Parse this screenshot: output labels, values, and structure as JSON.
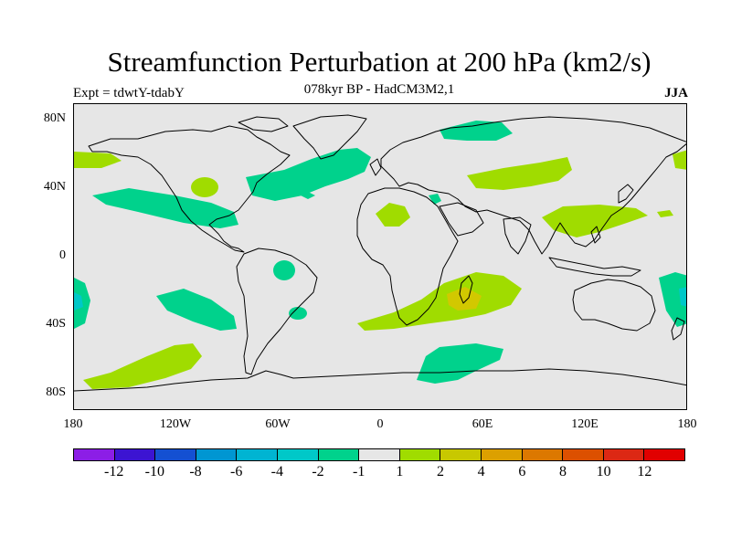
{
  "title": "Streamfunction Perturbation at 200 hPa (km2/s)",
  "subtitle": "078kyr BP - HadCM3M2,1",
  "experiment": "Expt = tdwtY-tdabY",
  "season": "JJA",
  "map": {
    "projection": "equirectangular",
    "lon_range": [
      -180,
      180
    ],
    "lat_range": [
      -90,
      90
    ],
    "lat_labels": [
      "80N",
      "40N",
      "0",
      "40S",
      "80S"
    ],
    "lon_labels": [
      "180",
      "120W",
      "60W",
      "0",
      "60E",
      "120E",
      "180"
    ],
    "colors": {
      "background": "#e6e6e6",
      "neg_small": "#00d28c",
      "neg_medium": "#00c8c8",
      "pos_small": "#a0dc00",
      "pos_medium": "#d2c800"
    }
  },
  "colorbar": {
    "labels": [
      "-12",
      "-10",
      "-8",
      "-6",
      "-4",
      "-2",
      "-1",
      "1",
      "2",
      "4",
      "6",
      "8",
      "10",
      "12"
    ],
    "colors": [
      "#8c1ee6",
      "#3c14d2",
      "#1450d2",
      "#0096d2",
      "#00b4d2",
      "#00c8c8",
      "#00d28c",
      "#e6e6e6",
      "#a0dc00",
      "#c8c800",
      "#dca000",
      "#dc7800",
      "#dc5000",
      "#dc2814",
      "#e10000"
    ]
  }
}
